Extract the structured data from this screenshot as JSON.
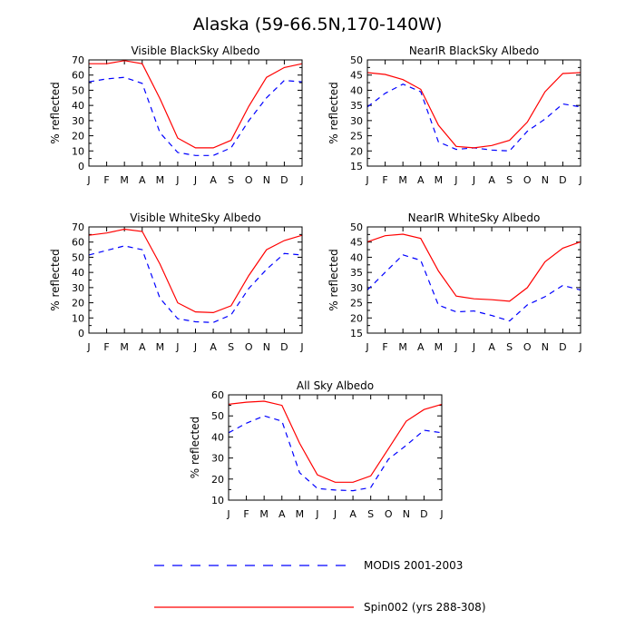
{
  "title": "Alaska (59-66.5N,170-140W)",
  "legend": [
    {
      "label": "MODIS 2001-2003",
      "color": "#0000ff",
      "style": "dashed"
    },
    {
      "label": "Spin002 (yrs 288-308)",
      "color": "#ff0000",
      "style": "solid"
    }
  ],
  "chart_data": [
    {
      "type": "line",
      "title": "Visible BlackSky Albedo",
      "ylabel": "% reflected",
      "ylim": [
        0,
        70
      ],
      "yticks": [
        0,
        10,
        20,
        30,
        40,
        50,
        60,
        70
      ],
      "categories": [
        "J",
        "F",
        "M",
        "A",
        "M",
        "J",
        "J",
        "A",
        "S",
        "O",
        "N",
        "D",
        "J"
      ],
      "series": [
        {
          "name": "MODIS 2001-2003",
          "values": [
            55.5,
            57.5,
            58.5,
            54.5,
            22,
            9,
            7,
            7,
            12,
            30,
            45,
            56.5,
            55.5
          ]
        },
        {
          "name": "Spin002 (yrs 288-308)",
          "values": [
            67.5,
            67.5,
            69.5,
            67.5,
            44.5,
            18.5,
            12,
            12,
            17,
            39.5,
            58.5,
            65,
            67.5
          ]
        }
      ]
    },
    {
      "type": "line",
      "title": "NearIR BlackSky Albedo",
      "ylabel": "% reflected",
      "ylim": [
        15,
        50
      ],
      "yticks": [
        15,
        20,
        25,
        30,
        35,
        40,
        45,
        50
      ],
      "categories": [
        "J",
        "F",
        "M",
        "A",
        "M",
        "J",
        "J",
        "A",
        "S",
        "O",
        "N",
        "D",
        "J"
      ],
      "series": [
        {
          "name": "MODIS 2001-2003",
          "values": [
            34.5,
            39,
            42,
            39.5,
            23,
            20.5,
            21,
            20.3,
            20,
            26.5,
            30.5,
            35.5,
            34.5
          ]
        },
        {
          "name": "Spin002 (yrs 288-308)",
          "values": [
            45.8,
            45.2,
            43.5,
            40.3,
            28.5,
            21.5,
            21,
            21.8,
            23.5,
            29.5,
            39.5,
            45.5,
            45.8
          ]
        }
      ]
    },
    {
      "type": "line",
      "title": "Visible WhiteSky Albedo",
      "ylabel": "% reflected",
      "ylim": [
        0,
        70
      ],
      "yticks": [
        0,
        10,
        20,
        30,
        40,
        50,
        60,
        70
      ],
      "categories": [
        "J",
        "F",
        "M",
        "A",
        "M",
        "J",
        "J",
        "A",
        "S",
        "O",
        "N",
        "D",
        "J"
      ],
      "series": [
        {
          "name": "MODIS 2001-2003",
          "values": [
            51.5,
            54.5,
            57.5,
            55,
            23,
            9.5,
            7.5,
            7,
            12,
            29.5,
            42,
            52.5,
            51.5
          ]
        },
        {
          "name": "Spin002 (yrs 288-308)",
          "values": [
            64.5,
            66,
            68.5,
            67,
            45.5,
            20,
            14,
            13.5,
            18,
            38,
            55,
            61,
            64.5
          ]
        }
      ]
    },
    {
      "type": "line",
      "title": "NearIR WhiteSky Albedo",
      "ylabel": "% reflected",
      "ylim": [
        15,
        50
      ],
      "yticks": [
        15,
        20,
        25,
        30,
        35,
        40,
        45,
        50
      ],
      "categories": [
        "J",
        "F",
        "M",
        "A",
        "M",
        "J",
        "J",
        "A",
        "S",
        "O",
        "N",
        "D",
        "J"
      ],
      "series": [
        {
          "name": "MODIS 2001-2003",
          "values": [
            29.2,
            35,
            40.8,
            39,
            24.2,
            22,
            22.3,
            20.8,
            19,
            24.3,
            27,
            30.7,
            29.2
          ]
        },
        {
          "name": "Spin002 (yrs 288-308)",
          "values": [
            45.1,
            47.1,
            47.6,
            46.2,
            35.5,
            27.2,
            26.3,
            26,
            25.5,
            30,
            38.5,
            43,
            45.1
          ]
        }
      ]
    },
    {
      "type": "line",
      "title": "All Sky Albedo",
      "ylabel": "% reflected",
      "ylim": [
        10,
        60
      ],
      "yticks": [
        10,
        20,
        30,
        40,
        50,
        60
      ],
      "categories": [
        "J",
        "F",
        "M",
        "A",
        "M",
        "J",
        "J",
        "A",
        "S",
        "O",
        "N",
        "D",
        "J"
      ],
      "series": [
        {
          "name": "MODIS 2001-2003",
          "values": [
            42,
            46.5,
            50,
            47.5,
            23,
            15.5,
            14.8,
            14.5,
            16,
            29.5,
            36,
            43.2,
            42
          ]
        },
        {
          "name": "Spin002 (yrs 288-308)",
          "values": [
            55.5,
            56.5,
            57,
            55,
            37,
            22,
            18.5,
            18.5,
            21.5,
            34.5,
            47.5,
            53,
            55.5
          ]
        }
      ]
    }
  ]
}
